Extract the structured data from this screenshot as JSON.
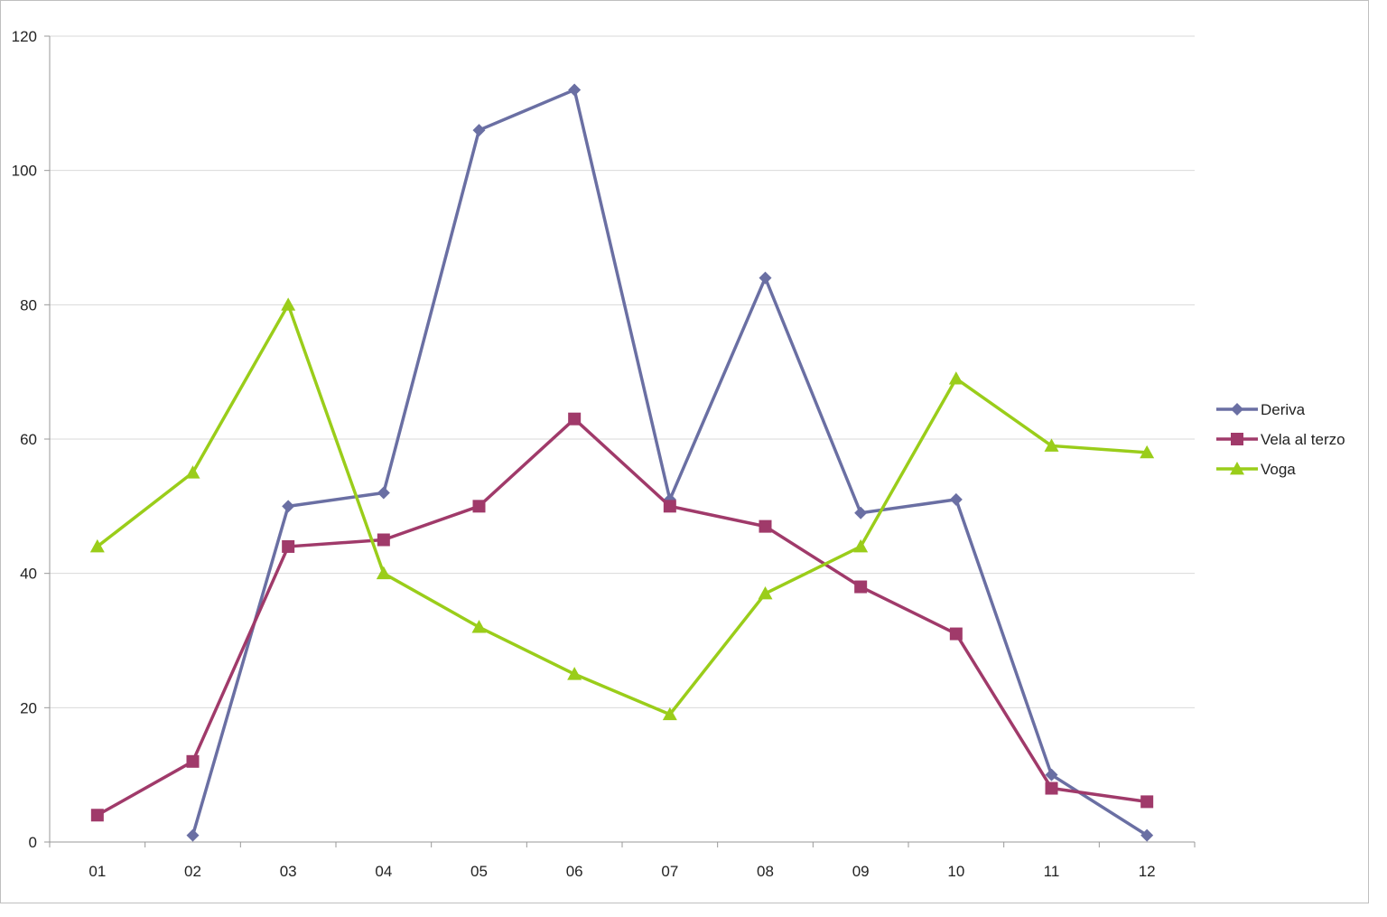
{
  "chart_data": {
    "type": "line",
    "categories": [
      "01",
      "02",
      "03",
      "04",
      "05",
      "06",
      "07",
      "08",
      "09",
      "10",
      "11",
      "12"
    ],
    "ylim": [
      0,
      120
    ],
    "yticks": [
      0,
      20,
      40,
      60,
      80,
      100,
      120
    ],
    "grid": true,
    "legend_position": "right",
    "series": [
      {
        "name": "Deriva",
        "color": "#6a6fa3",
        "marker": "diamond",
        "values": [
          null,
          1,
          50,
          52,
          106,
          112,
          51,
          84,
          49,
          51,
          10,
          1
        ]
      },
      {
        "name": "Vela al terzo",
        "color": "#a03a6a",
        "marker": "square",
        "values": [
          4,
          12,
          44,
          45,
          50,
          63,
          50,
          47,
          38,
          31,
          8,
          6
        ]
      },
      {
        "name": "Voga",
        "color": "#9acd1a",
        "marker": "triangle",
        "values": [
          44,
          55,
          80,
          40,
          32,
          25,
          19,
          37,
          44,
          69,
          59,
          58
        ]
      }
    ]
  }
}
